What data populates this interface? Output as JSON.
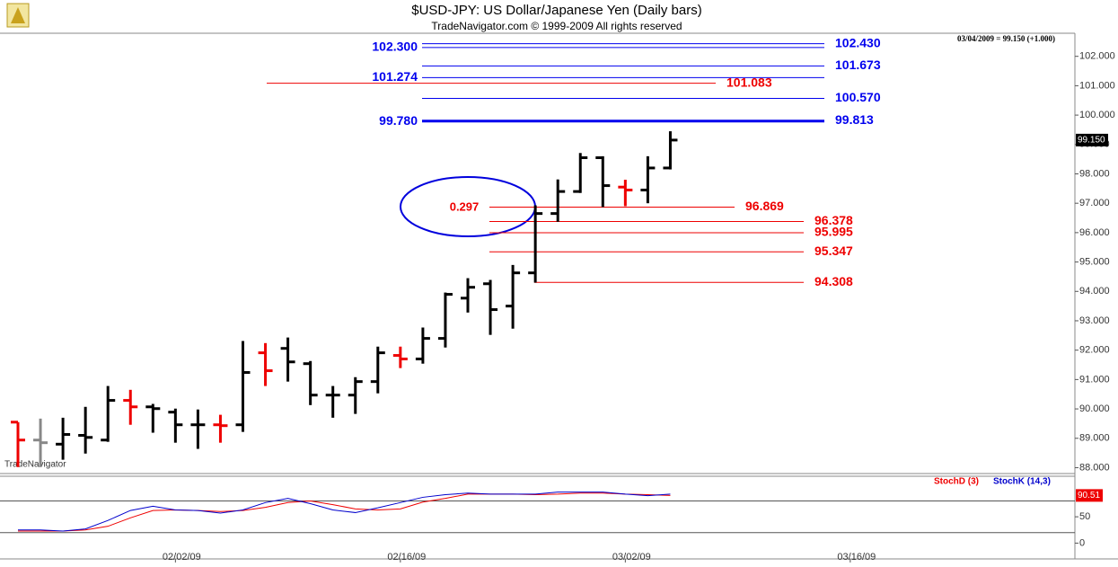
{
  "chart_data": [
    {
      "type": "ohlc",
      "title": "$USD-JPY:  US Dollar/Japanese Yen  (Daily bars)",
      "subtitle": "TradeNavigator.com © 1999-2009 All rights reserved",
      "header": "03/04/2009 = 99.150 (+1.000)",
      "watermark": "TradeNavigator",
      "annotation": "0.297",
      "categories": [
        null,
        null,
        null,
        null,
        null,
        null,
        null,
        "02/02/09",
        null,
        null,
        null,
        null,
        null,
        null,
        null,
        null,
        null,
        "02/16/09",
        null,
        null,
        null,
        null,
        null,
        null,
        null,
        null,
        null,
        "03/02/09",
        null,
        null,
        null,
        null,
        null,
        null,
        null,
        null,
        null,
        "03/16/09"
      ],
      "open": [
        89.55,
        88.94,
        88.8,
        89.1,
        88.94,
        90.29,
        90.07,
        89.89,
        89.46,
        89.46,
        89.46,
        91.91,
        92.06,
        91.54,
        90.47,
        90.47,
        90.93,
        91.82,
        91.7,
        92.4,
        93.77,
        94.26,
        93.5,
        94.63,
        96.65,
        97.4,
        98.55,
        97.55,
        97.45,
        98.2,
        null,
        null,
        null,
        null,
        null,
        null,
        null,
        null
      ],
      "high": [
        89.55,
        89.67,
        89.7,
        90.07,
        90.78,
        90.65,
        90.17,
        90.01,
        89.98,
        89.8,
        92.31,
        92.24,
        92.43,
        91.63,
        90.78,
        91.08,
        92.12,
        92.12,
        92.77,
        93.96,
        94.45,
        94.39,
        94.9,
        96.93,
        97.81,
        98.71,
        98.6,
        97.8,
        98.6,
        99.45,
        null,
        null,
        null,
        null,
        null,
        null,
        null,
        null
      ],
      "low": [
        88.02,
        88.02,
        88.27,
        88.48,
        88.88,
        89.46,
        89.19,
        88.85,
        88.64,
        88.85,
        89.22,
        90.78,
        90.93,
        90.13,
        89.7,
        89.83,
        90.53,
        91.39,
        91.54,
        92.09,
        93.28,
        92.52,
        92.73,
        94.3,
        96.37,
        97.35,
        96.87,
        96.9,
        97.0,
        98.15,
        null,
        null,
        null,
        null,
        null,
        null,
        null,
        null
      ],
      "close": [
        88.94,
        88.85,
        89.13,
        89.03,
        90.29,
        90.07,
        90.01,
        89.46,
        89.46,
        89.43,
        91.24,
        91.3,
        91.6,
        90.47,
        90.47,
        90.93,
        91.91,
        91.7,
        92.4,
        93.9,
        94.14,
        93.38,
        94.63,
        96.65,
        97.4,
        98.55,
        97.6,
        97.45,
        98.2,
        99.15,
        null,
        null,
        null,
        null,
        null,
        null,
        null,
        null
      ],
      "colors": [
        "#ee0000",
        "#888888",
        "#000000",
        "#000000",
        "#000000",
        "#ee0000",
        "#000000",
        "#000000",
        "#000000",
        "#ee0000",
        "#000000",
        "#ee0000",
        "#000000",
        "#000000",
        "#000000",
        "#000000",
        "#000000",
        "#ee0000",
        "#000000",
        "#000000",
        "#000000",
        "#000000",
        "#000000",
        "#000000",
        "#000000",
        "#000000",
        "#000000",
        "#ee0000",
        "#000000",
        "#000000",
        null,
        null,
        null,
        null,
        null,
        null,
        null,
        null
      ],
      "ylim": [
        87.8,
        103.0
      ],
      "yticks": [
        {
          "value": 88,
          "label": "88.000"
        },
        {
          "value": 89,
          "label": "89.000"
        },
        {
          "value": 90,
          "label": "90.000"
        },
        {
          "value": 91,
          "label": "91.000"
        },
        {
          "value": 92,
          "label": "92.000"
        },
        {
          "value": 93,
          "label": "93.000"
        },
        {
          "value": 94,
          "label": "94.000"
        },
        {
          "value": 95,
          "label": "95.000"
        },
        {
          "value": 96,
          "label": "96.000"
        },
        {
          "value": 97,
          "label": "97.000"
        },
        {
          "value": 98,
          "label": "98.000"
        },
        {
          "value": 99,
          "label": "99.000"
        },
        {
          "value": 100,
          "label": "100.000"
        },
        {
          "value": 101,
          "label": "101.000"
        },
        {
          "value": 102,
          "label": "102.000"
        }
      ],
      "last_price": {
        "value": 99.15,
        "label": "99.150"
      },
      "levels": [
        {
          "value": 102.43,
          "label": "102.430",
          "color": "#0000ee",
          "side": "right"
        },
        {
          "value": 102.3,
          "label": "102.300",
          "color": "#0000ee",
          "side": "left"
        },
        {
          "value": 101.673,
          "label": "101.673",
          "color": "#0000ee",
          "side": "right"
        },
        {
          "value": 101.274,
          "label": "101.274",
          "color": "#0000ee",
          "side": "left"
        },
        {
          "value": 101.083,
          "label": "101.083",
          "color": "#ee0000",
          "side": "right"
        },
        {
          "value": 100.57,
          "label": "100.570",
          "color": "#0000ee",
          "side": "right"
        },
        {
          "value": 99.813,
          "label": "99.813",
          "color": "#0000ee",
          "side": "right"
        },
        {
          "value": 99.78,
          "label": "99.780",
          "color": "#0000ee",
          "side": "left"
        },
        {
          "value": 96.869,
          "label": "96.869",
          "color": "#ee0000",
          "side": "right"
        },
        {
          "value": 96.378,
          "label": "96.378",
          "color": "#ee0000",
          "side": "right"
        },
        {
          "value": 95.995,
          "label": "95.995",
          "color": "#ee0000",
          "side": "right"
        },
        {
          "value": 95.347,
          "label": "95.347",
          "color": "#ee0000",
          "side": "right"
        },
        {
          "value": 94.308,
          "label": "94.308",
          "color": "#ee0000",
          "side": "right"
        }
      ]
    },
    {
      "type": "line",
      "series": [
        {
          "name": "StochD (3)",
          "color": "#ee0000",
          "values": [
            23,
            23,
            23,
            25,
            32,
            48,
            62,
            63,
            62,
            60,
            62,
            68,
            77,
            80,
            73,
            65,
            63,
            65,
            78,
            85,
            93,
            93,
            93,
            92,
            93,
            95,
            95,
            93,
            92,
            90.51
          ]
        },
        {
          "name": "StochK (14,3)",
          "color": "#0000cc",
          "values": [
            25,
            25,
            23,
            27,
            43,
            62,
            70,
            63,
            62,
            57,
            63,
            77,
            85,
            75,
            63,
            58,
            67,
            77,
            87,
            92,
            95,
            93,
            93,
            93,
            97,
            97,
            97,
            93,
            90,
            93
          ]
        }
      ],
      "ylim": [
        -30,
        127
      ],
      "yticks": [
        0,
        50
      ],
      "hlines": [
        20,
        80
      ],
      "last_value": {
        "value": 90.51,
        "label": "90.51"
      }
    }
  ]
}
